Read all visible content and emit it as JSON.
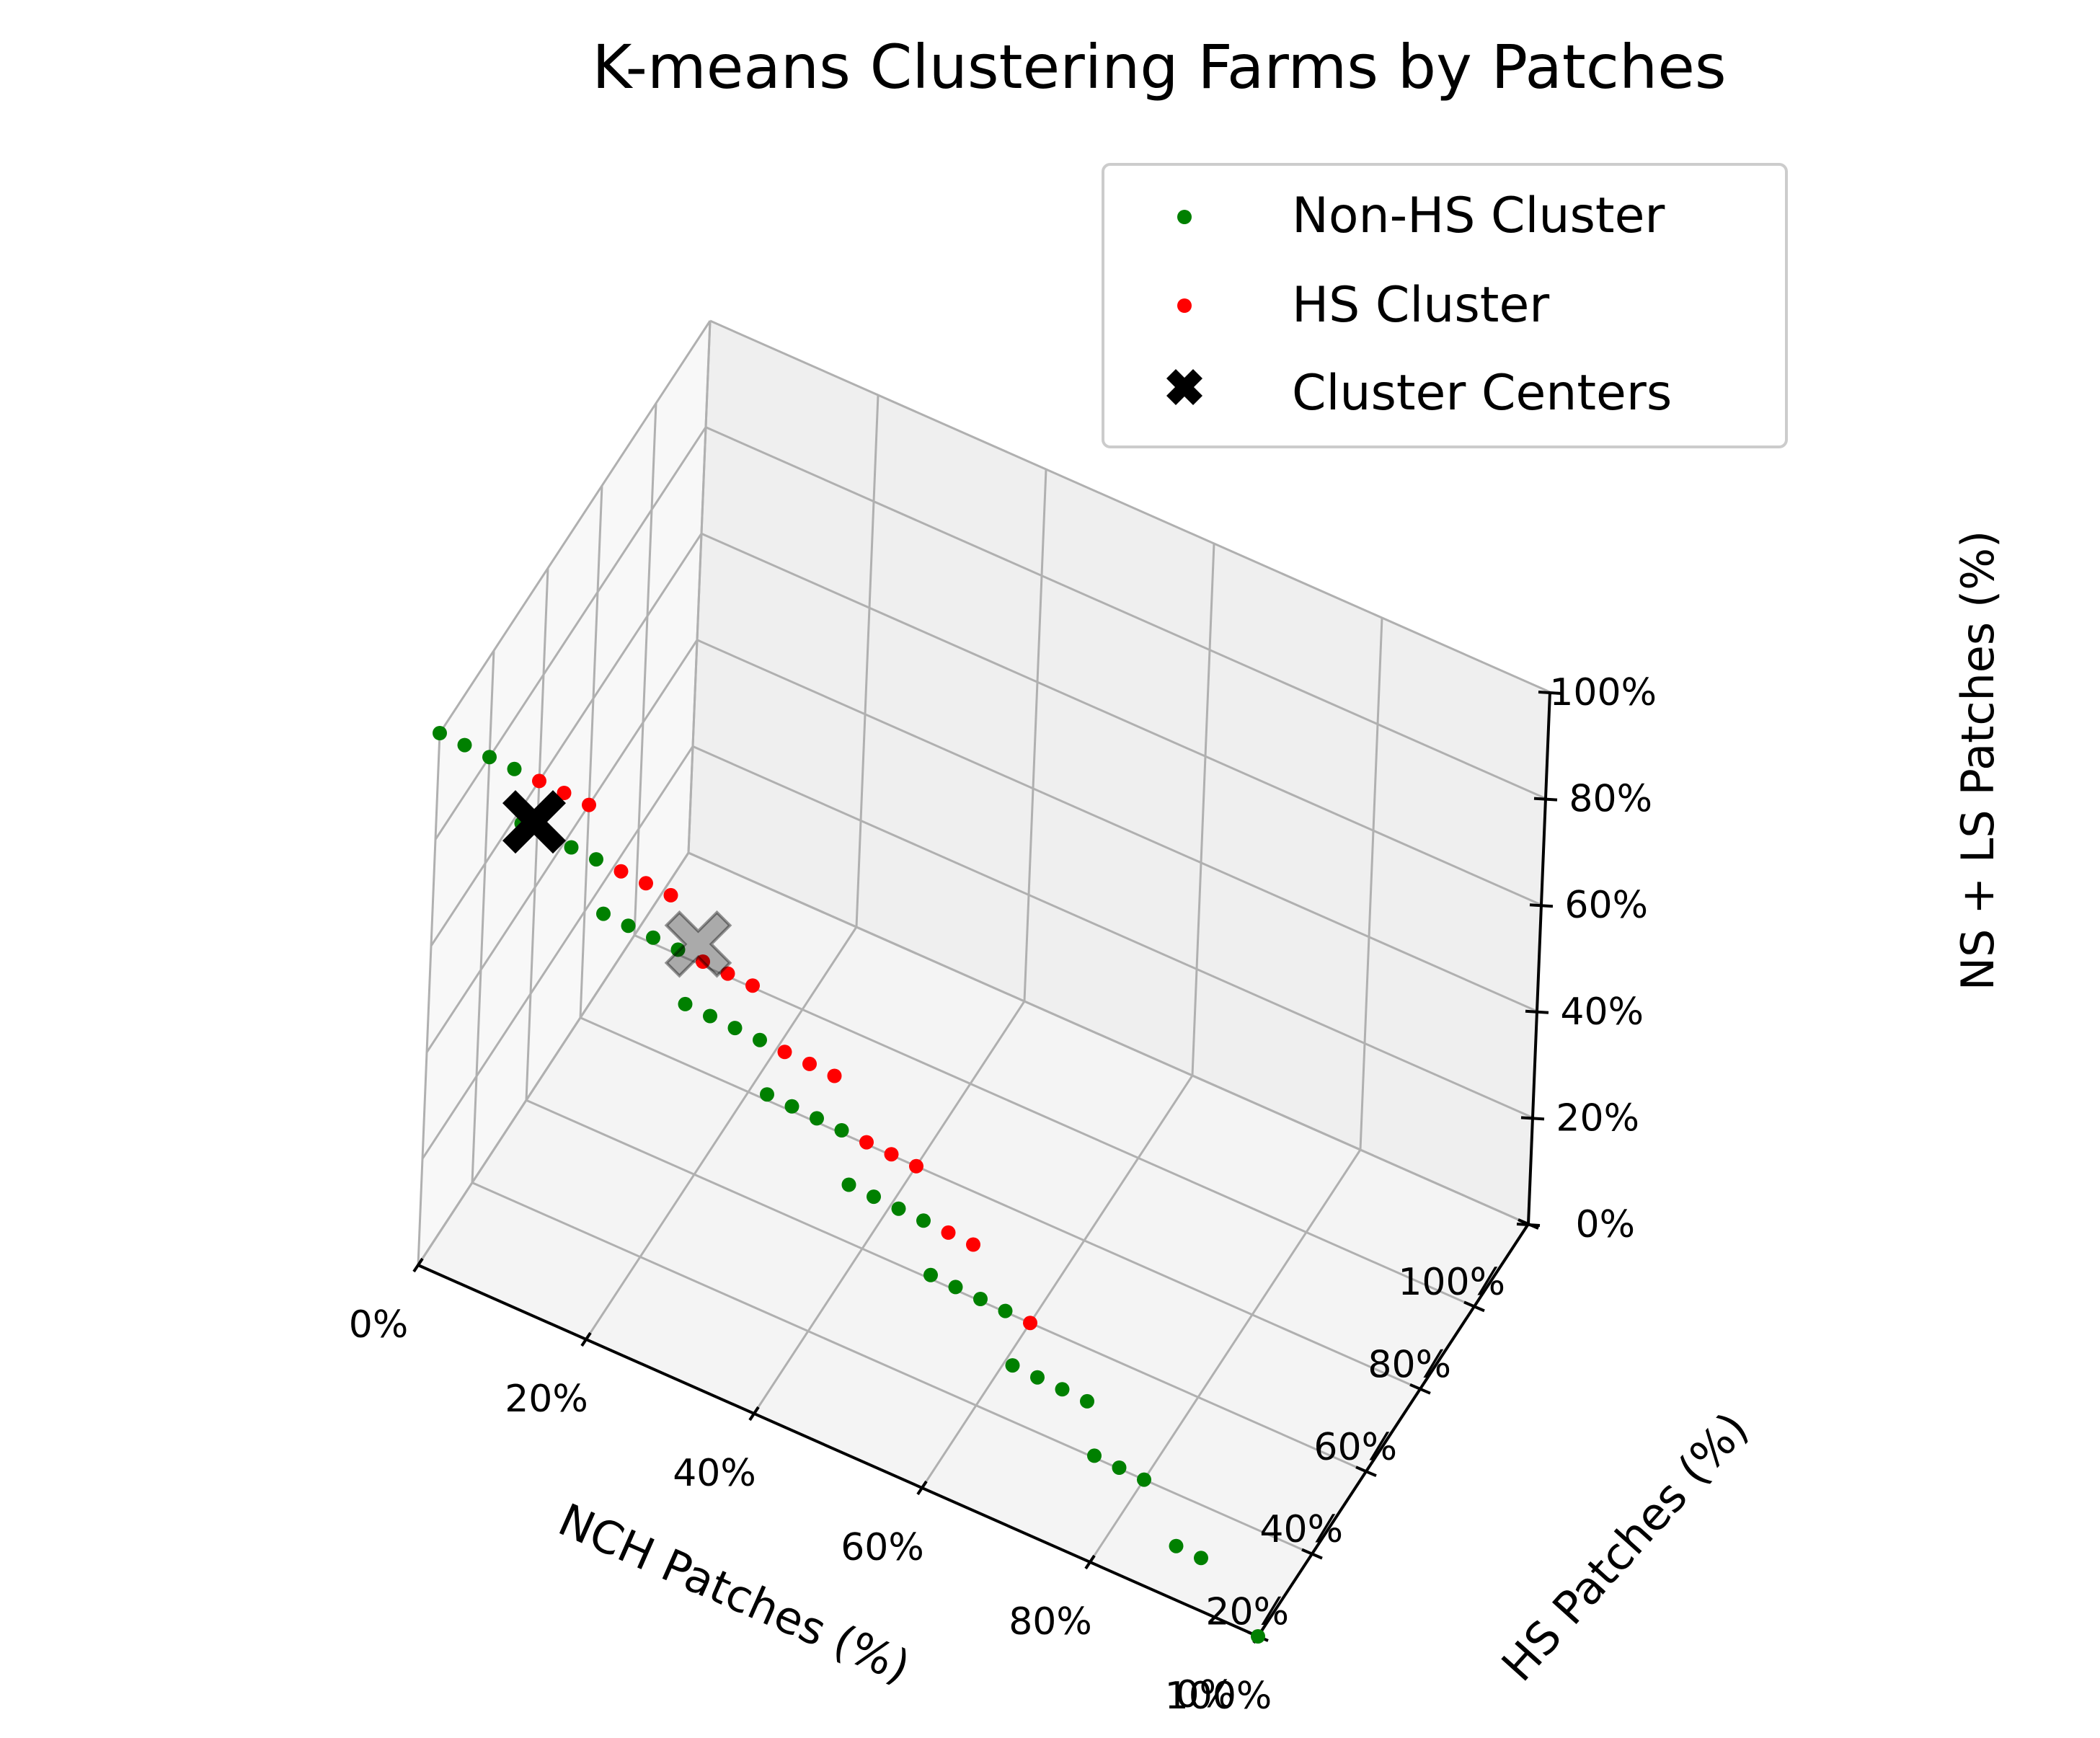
{
  "chart_data": {
    "type": "scatter",
    "projection": "3d",
    "title": "K-means Clustering Farms by Patches",
    "xlabel": "NCH Patches (%)",
    "ylabel": "HS Patches (%)",
    "zlabel": "NS + LS Patches (%)",
    "xlim": [
      0,
      100
    ],
    "ylim": [
      0,
      100
    ],
    "zlim": [
      0,
      100
    ],
    "tick_values": [
      0,
      20,
      40,
      60,
      80,
      100
    ],
    "tick_labels": [
      "0%",
      "20%",
      "40%",
      "60%",
      "80%",
      "100%"
    ],
    "grid": true,
    "legend_position": "top-right",
    "series": [
      {
        "name": "Non-HS Cluster",
        "color": "#008000",
        "marker": "dot",
        "points": [
          {
            "x": 0,
            "y": 0,
            "z": 100
          },
          {
            "x": 10,
            "y": 0,
            "z": 90
          },
          {
            "x": 20,
            "y": 0,
            "z": 80
          },
          {
            "x": 30,
            "y": 0,
            "z": 70
          },
          {
            "x": 40,
            "y": 0,
            "z": 60
          },
          {
            "x": 50,
            "y": 0,
            "z": 50
          },
          {
            "x": 60,
            "y": 0,
            "z": 40
          },
          {
            "x": 70,
            "y": 0,
            "z": 30
          },
          {
            "x": 80,
            "y": 0,
            "z": 20
          },
          {
            "x": 90,
            "y": 0,
            "z": 10
          },
          {
            "x": 100,
            "y": 0,
            "z": 0
          },
          {
            "x": 0,
            "y": 10,
            "z": 90
          },
          {
            "x": 10,
            "y": 10,
            "z": 80
          },
          {
            "x": 20,
            "y": 10,
            "z": 70
          },
          {
            "x": 30,
            "y": 10,
            "z": 60
          },
          {
            "x": 40,
            "y": 10,
            "z": 50
          },
          {
            "x": 50,
            "y": 10,
            "z": 40
          },
          {
            "x": 60,
            "y": 10,
            "z": 30
          },
          {
            "x": 70,
            "y": 10,
            "z": 20
          },
          {
            "x": 80,
            "y": 10,
            "z": 10
          },
          {
            "x": 90,
            "y": 10,
            "z": 0
          },
          {
            "x": 0,
            "y": 20,
            "z": 80
          },
          {
            "x": 10,
            "y": 20,
            "z": 70
          },
          {
            "x": 20,
            "y": 20,
            "z": 60
          },
          {
            "x": 30,
            "y": 20,
            "z": 50
          },
          {
            "x": 40,
            "y": 20,
            "z": 40
          },
          {
            "x": 50,
            "y": 20,
            "z": 30
          },
          {
            "x": 60,
            "y": 20,
            "z": 20
          },
          {
            "x": 70,
            "y": 20,
            "z": 10
          },
          {
            "x": 80,
            "y": 20,
            "z": 0
          },
          {
            "x": 0,
            "y": 30,
            "z": 70
          },
          {
            "x": 10,
            "y": 30,
            "z": 60
          },
          {
            "x": 20,
            "y": 30,
            "z": 50
          },
          {
            "x": 30,
            "y": 30,
            "z": 40
          },
          {
            "x": 40,
            "y": 30,
            "z": 30
          },
          {
            "x": 50,
            "y": 30,
            "z": 20
          },
          {
            "x": 60,
            "y": 30,
            "z": 10
          },
          {
            "x": 70,
            "y": 30,
            "z": 0
          }
        ]
      },
      {
        "name": "HS Cluster",
        "color": "#ff0000",
        "marker": "dot",
        "points": [
          {
            "x": 0,
            "y": 40,
            "z": 60
          },
          {
            "x": 10,
            "y": 40,
            "z": 50
          },
          {
            "x": 20,
            "y": 40,
            "z": 40
          },
          {
            "x": 30,
            "y": 40,
            "z": 30
          },
          {
            "x": 40,
            "y": 40,
            "z": 20
          },
          {
            "x": 50,
            "y": 40,
            "z": 10
          },
          {
            "x": 60,
            "y": 40,
            "z": 0
          },
          {
            "x": 0,
            "y": 50,
            "z": 50
          },
          {
            "x": 10,
            "y": 50,
            "z": 40
          },
          {
            "x": 20,
            "y": 50,
            "z": 30
          },
          {
            "x": 30,
            "y": 50,
            "z": 20
          },
          {
            "x": 40,
            "y": 50,
            "z": 10
          },
          {
            "x": 50,
            "y": 50,
            "z": 0
          },
          {
            "x": 0,
            "y": 60,
            "z": 40
          },
          {
            "x": 10,
            "y": 60,
            "z": 30
          },
          {
            "x": 20,
            "y": 60,
            "z": 20
          },
          {
            "x": 30,
            "y": 60,
            "z": 10
          },
          {
            "x": 40,
            "y": 60,
            "z": 0
          }
        ]
      },
      {
        "name": "Cluster Centers",
        "color": "#000000",
        "marker": "X",
        "points": [
          {
            "x": 8.5,
            "y": 10,
            "z": 81.5
          },
          {
            "x": 17,
            "y": 48,
            "z": 35
          }
        ]
      }
    ]
  }
}
